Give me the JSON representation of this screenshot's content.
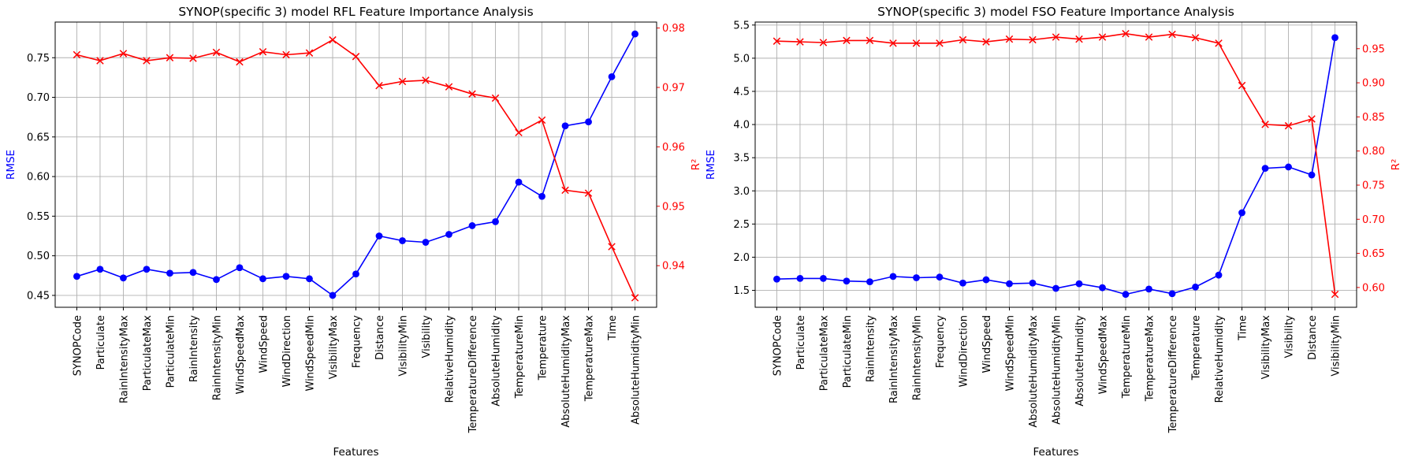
{
  "chart_data": [
    {
      "type": "line",
      "title": "SYNOP(specific 3) model RFL Feature Importance Analysis",
      "xlabel": "Features",
      "ylabel": "RMSE",
      "y2label": "R²",
      "ylim": [
        0.435,
        0.795
      ],
      "y2lim": [
        0.933,
        0.981
      ],
      "yticks": [
        0.45,
        0.5,
        0.55,
        0.6,
        0.65,
        0.7,
        0.75
      ],
      "y2ticks": [
        0.94,
        0.95,
        0.96,
        0.97,
        0.98
      ],
      "grid": true,
      "categories": [
        "SYNOPCode",
        "Particulate",
        "RainIntensityMax",
        "ParticulateMax",
        "ParticulateMin",
        "RainIntensity",
        "RainIntensityMin",
        "WindSpeedMax",
        "WindSpeed",
        "WindDirection",
        "WindSpeedMin",
        "VisibilityMax",
        "Frequency",
        "Distance",
        "VisibilityMin",
        "Visibility",
        "RelativeHumidity",
        "TemperatureDifference",
        "AbsoluteHumidity",
        "TemperatureMin",
        "Temperature",
        "AbsoluteHumidityMax",
        "TemperatureMax",
        "Time",
        "AbsoluteHumidityMin"
      ],
      "series": [
        {
          "axis": "left",
          "color": "#0000ff",
          "marker": "circle",
          "values": [
            0.474,
            0.483,
            0.472,
            0.483,
            0.478,
            0.479,
            0.47,
            0.485,
            0.471,
            0.474,
            0.471,
            0.45,
            0.477,
            0.525,
            0.519,
            0.517,
            0.527,
            0.538,
            0.543,
            0.593,
            0.575,
            0.664,
            0.669,
            0.726,
            0.78
          ]
        },
        {
          "axis": "right",
          "color": "#ff0000",
          "marker": "x",
          "values": [
            0.9755,
            0.9745,
            0.9757,
            0.9745,
            0.975,
            0.9749,
            0.9759,
            0.9743,
            0.976,
            0.9755,
            0.9758,
            0.978,
            0.9752,
            0.9703,
            0.971,
            0.9712,
            0.9701,
            0.9689,
            0.9682,
            0.9624,
            0.9645,
            0.9527,
            0.9522,
            0.9432,
            0.9346
          ]
        }
      ]
    },
    {
      "type": "line",
      "title": "SYNOP(specific 3) model FSO Feature Importance Analysis",
      "xlabel": "Features",
      "ylabel": "RMSE",
      "y2label": "R²",
      "ylim": [
        1.245,
        5.545
      ],
      "y2lim": [
        0.571,
        0.989
      ],
      "yticks": [
        1.5,
        2.0,
        2.5,
        3.0,
        3.5,
        4.0,
        4.5,
        5.0,
        5.5
      ],
      "y2ticks": [
        0.6,
        0.65,
        0.7,
        0.75,
        0.8,
        0.85,
        0.9,
        0.95
      ],
      "grid": true,
      "categories": [
        "SYNOPCode",
        "Particulate",
        "ParticulateMax",
        "ParticulateMin",
        "RainIntensity",
        "RainIntensityMax",
        "RainIntensityMin",
        "Frequency",
        "WindDirection",
        "WindSpeed",
        "WindSpeedMin",
        "AbsoluteHumidityMax",
        "AbsoluteHumidityMin",
        "AbsoluteHumidity",
        "WindSpeedMax",
        "TemperatureMin",
        "TemperatureMax",
        "TemperatureDifference",
        "Temperature",
        "RelativeHumidity",
        "Time",
        "VisibilityMax",
        "Visibility",
        "Distance",
        "VisibilityMin"
      ],
      "series": [
        {
          "axis": "left",
          "color": "#0000ff",
          "marker": "circle",
          "values": [
            1.67,
            1.68,
            1.68,
            1.64,
            1.63,
            1.71,
            1.69,
            1.7,
            1.61,
            1.66,
            1.6,
            1.61,
            1.53,
            1.6,
            1.54,
            1.44,
            1.52,
            1.45,
            1.55,
            1.73,
            2.67,
            3.34,
            3.36,
            3.24,
            5.31
          ]
        },
        {
          "axis": "right",
          "color": "#ff0000",
          "marker": "x",
          "values": [
            0.961,
            0.96,
            0.959,
            0.962,
            0.962,
            0.958,
            0.958,
            0.958,
            0.963,
            0.96,
            0.964,
            0.963,
            0.967,
            0.964,
            0.967,
            0.972,
            0.967,
            0.971,
            0.966,
            0.958,
            0.896,
            0.839,
            0.837,
            0.847,
            0.59
          ]
        }
      ]
    }
  ]
}
